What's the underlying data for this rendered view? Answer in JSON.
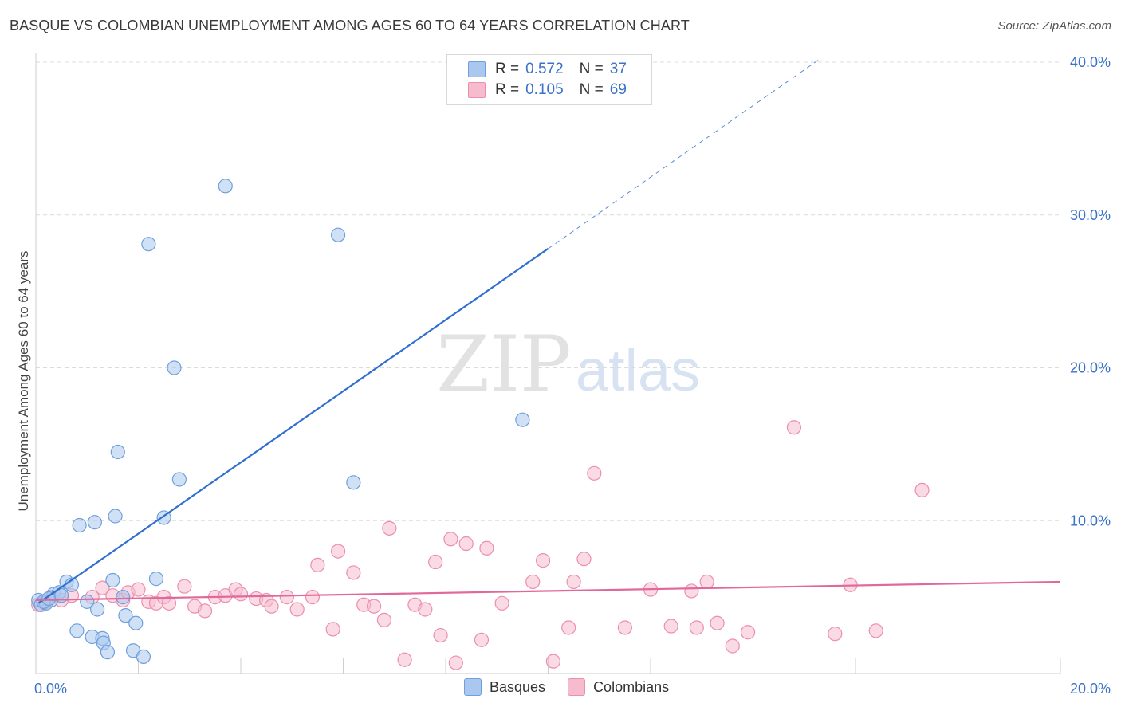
{
  "header": {
    "title": "BASQUE VS COLOMBIAN UNEMPLOYMENT AMONG AGES 60 TO 64 YEARS CORRELATION CHART",
    "source": "Source: ZipAtlas.com"
  },
  "watermark": {
    "zip": "ZIP",
    "atlas": "atlas"
  },
  "legend_top": {
    "rows": [
      {
        "r_label": "R =",
        "r_value": "0.572",
        "n_label": "N =",
        "n_value": "37"
      },
      {
        "r_label": "R =",
        "r_value": "0.105",
        "n_label": "N =",
        "n_value": "69"
      }
    ]
  },
  "legend_bottom": {
    "basques": "Basques",
    "colombians": "Colombians"
  },
  "colors": {
    "basque_fill": "#aac8ef",
    "basque_stroke": "#6f9fdc",
    "basque_line": "#2f6fcf",
    "colombian_fill": "#f6bccd",
    "colombian_stroke": "#ec8fac",
    "colombian_line": "#e0689a",
    "tick_label": "#3a72c8",
    "grid": "#dcdcdc"
  },
  "chart_data": {
    "type": "scatter",
    "title": "BASQUE VS COLOMBIAN UNEMPLOYMENT AMONG AGES 60 TO 64 YEARS CORRELATION CHART",
    "xlabel": "",
    "ylabel": "Unemployment Among Ages 60 to 64 years",
    "xlim": [
      0,
      20
    ],
    "ylim": [
      0,
      40
    ],
    "x_tick_labels": [
      "0.0%",
      "20.0%"
    ],
    "y_ticks": [
      10,
      20,
      30,
      40
    ],
    "y_tick_labels": [
      "10.0%",
      "20.0%",
      "30.0%",
      "40.0%"
    ],
    "grid": true,
    "legend_position": "top-center",
    "series": [
      {
        "name": "Basques",
        "r": 0.572,
        "n": 37,
        "trend": {
          "x0": 0.05,
          "y0": 4.6,
          "x1": 10.0,
          "y1": 27.8,
          "dash_to_x": 15.3,
          "dash_to_y": 40.2
        },
        "points": [
          [
            0.05,
            4.8
          ],
          [
            0.1,
            4.5
          ],
          [
            0.2,
            4.6
          ],
          [
            0.3,
            4.8
          ],
          [
            0.35,
            5.2
          ],
          [
            0.45,
            5.3
          ],
          [
            0.5,
            5.1
          ],
          [
            0.6,
            6.0
          ],
          [
            0.7,
            5.8
          ],
          [
            0.8,
            2.8
          ],
          [
            0.85,
            9.7
          ],
          [
            1.0,
            4.7
          ],
          [
            1.1,
            2.4
          ],
          [
            1.15,
            9.9
          ],
          [
            1.2,
            4.2
          ],
          [
            1.3,
            2.3
          ],
          [
            1.32,
            2.0
          ],
          [
            1.4,
            1.4
          ],
          [
            1.5,
            6.1
          ],
          [
            1.6,
            14.5
          ],
          [
            1.55,
            10.3
          ],
          [
            1.7,
            5.0
          ],
          [
            1.75,
            3.8
          ],
          [
            1.9,
            1.5
          ],
          [
            1.95,
            3.3
          ],
          [
            2.1,
            1.1
          ],
          [
            2.2,
            28.1
          ],
          [
            2.35,
            6.2
          ],
          [
            2.5,
            10.2
          ],
          [
            2.7,
            20.0
          ],
          [
            2.8,
            12.7
          ],
          [
            3.7,
            31.9
          ],
          [
            5.9,
            28.7
          ],
          [
            6.2,
            12.5
          ],
          [
            9.5,
            16.6
          ],
          [
            0.15,
            4.7
          ],
          [
            0.25,
            4.9
          ]
        ]
      },
      {
        "name": "Colombians",
        "r": 0.105,
        "n": 69,
        "trend": {
          "x0": 0.0,
          "y0": 4.8,
          "x1": 20.0,
          "y1": 6.0
        },
        "points": [
          [
            0.1,
            4.5
          ],
          [
            0.2,
            4.7
          ],
          [
            0.3,
            5.0
          ],
          [
            0.5,
            4.8
          ],
          [
            0.7,
            5.1
          ],
          [
            1.1,
            5.0
          ],
          [
            1.3,
            5.6
          ],
          [
            1.5,
            5.1
          ],
          [
            1.7,
            4.8
          ],
          [
            1.8,
            5.3
          ],
          [
            2.0,
            5.5
          ],
          [
            2.2,
            4.7
          ],
          [
            2.35,
            4.6
          ],
          [
            2.5,
            5.0
          ],
          [
            2.6,
            4.6
          ],
          [
            2.9,
            5.7
          ],
          [
            3.1,
            4.4
          ],
          [
            3.3,
            4.1
          ],
          [
            3.5,
            5.0
          ],
          [
            3.7,
            5.1
          ],
          [
            3.9,
            5.5
          ],
          [
            4.0,
            5.2
          ],
          [
            4.3,
            4.9
          ],
          [
            4.5,
            4.8
          ],
          [
            4.6,
            4.4
          ],
          [
            4.9,
            5.0
          ],
          [
            5.1,
            4.2
          ],
          [
            5.5,
            7.1
          ],
          [
            5.4,
            5.0
          ],
          [
            5.8,
            2.9
          ],
          [
            5.9,
            8.0
          ],
          [
            6.2,
            6.6
          ],
          [
            6.4,
            4.5
          ],
          [
            6.6,
            4.4
          ],
          [
            6.8,
            3.5
          ],
          [
            6.9,
            9.5
          ],
          [
            7.2,
            0.9
          ],
          [
            7.4,
            4.5
          ],
          [
            7.6,
            4.2
          ],
          [
            7.8,
            7.3
          ],
          [
            7.9,
            2.5
          ],
          [
            8.1,
            8.8
          ],
          [
            8.2,
            0.7
          ],
          [
            8.4,
            8.5
          ],
          [
            8.7,
            2.2
          ],
          [
            8.8,
            8.2
          ],
          [
            9.1,
            4.6
          ],
          [
            9.7,
            6.0
          ],
          [
            9.9,
            7.4
          ],
          [
            10.1,
            0.8
          ],
          [
            10.4,
            3.0
          ],
          [
            10.5,
            6.0
          ],
          [
            10.7,
            7.5
          ],
          [
            10.9,
            13.1
          ],
          [
            11.5,
            3.0
          ],
          [
            12.0,
            5.5
          ],
          [
            12.4,
            3.1
          ],
          [
            12.8,
            5.4
          ],
          [
            12.9,
            3.0
          ],
          [
            13.1,
            6.0
          ],
          [
            13.3,
            3.3
          ],
          [
            13.6,
            1.8
          ],
          [
            13.9,
            2.7
          ],
          [
            14.8,
            16.1
          ],
          [
            15.6,
            2.6
          ],
          [
            15.9,
            5.8
          ],
          [
            16.4,
            2.8
          ],
          [
            17.3,
            12.0
          ],
          [
            0.05,
            4.5
          ]
        ]
      }
    ]
  }
}
